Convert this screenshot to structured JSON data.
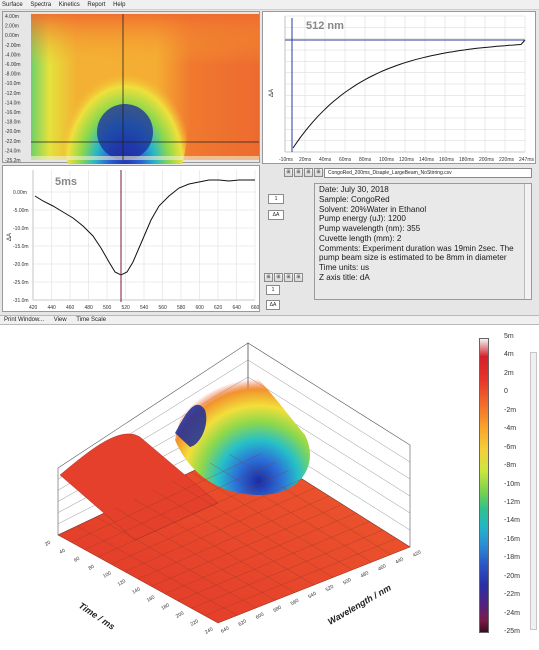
{
  "menu": [
    "Surface",
    "Spectra",
    "Kinetics",
    "Report",
    "Help"
  ],
  "heatmap": {
    "y_ticks": [
      "4.00m",
      "2.00m",
      "0.00m",
      "-2.00m",
      "-4.00m",
      "-6.00m",
      "-8.00m",
      "-10.0m",
      "-12.0m",
      "-14.0m",
      "-16.0m",
      "-18.0m",
      "-20.0m",
      "-22.0m",
      "-24.0m",
      "-25.2m"
    ]
  },
  "kinetic_panel": {
    "label": "512 nm",
    "y_axis_title": "ΔA",
    "x_ticks": [
      "-10ms",
      "20ms",
      "40ms",
      "60ms",
      "80ms",
      "100ms",
      "120ms",
      "140ms",
      "160ms",
      "180ms",
      "200ms",
      "220ms",
      "247ms"
    ]
  },
  "spectrum_panel": {
    "label": "5ms",
    "y_axis_title": "ΔA",
    "y_ticks": [
      "0.00m",
      "-5.00m",
      "-10.0m",
      "-15.0m",
      "-20.0m",
      "-25.0m",
      "-31.0m"
    ],
    "x_ticks": [
      "420",
      "440",
      "460",
      "480",
      "500",
      "520",
      "540",
      "560",
      "580",
      "600",
      "620",
      "640",
      "660"
    ]
  },
  "controls": {
    "field_top": "1",
    "field_mid": "ΔA",
    "field_bottom": "1",
    "field_bottom2": "ΔA",
    "button_glyph": "⊞"
  },
  "file": {
    "filename": "CongoRed_200ms_Disaple_LargeBeam_NoStirring.csv",
    "date": "Date: July 30, 2018",
    "sample": "Sample: CongoRed",
    "solvent": "Solvent: 20%Water in Ethanol",
    "pump_energy": "Pump energy (uJ): 1200",
    "pump_wavelength": "Pump wavelength (nm): 355",
    "cuvette": "Cuvette length (mm): 2",
    "comments": "Comments: Experiment duration was 19min 2sec. The pump beam size is estimated to be 8mm in diameter",
    "time_units": "Time units: us",
    "z_axis": "Z axis title: dA"
  },
  "statusbar": [
    "Print Window...",
    "View",
    "Time Scale"
  ],
  "surface3d": {
    "time_axis_label": "Time / ms",
    "wavelength_axis_label": "Wavelength / nm",
    "time_ticks": [
      "20",
      "40",
      "60",
      "80",
      "100",
      "120",
      "140",
      "160",
      "180",
      "200",
      "220",
      "240"
    ],
    "wavelength_ticks": [
      "420",
      "440",
      "460",
      "480",
      "500",
      "520",
      "540",
      "560",
      "580",
      "600",
      "620",
      "640"
    ],
    "colorbar_labels": [
      "5m",
      "4m",
      "2m",
      "0",
      "-2m",
      "-4m",
      "-6m",
      "-8m",
      "-10m",
      "-12m",
      "-14m",
      "-16m",
      "-18m",
      "-20m",
      "-22m",
      "-24m",
      "-25m"
    ]
  }
}
